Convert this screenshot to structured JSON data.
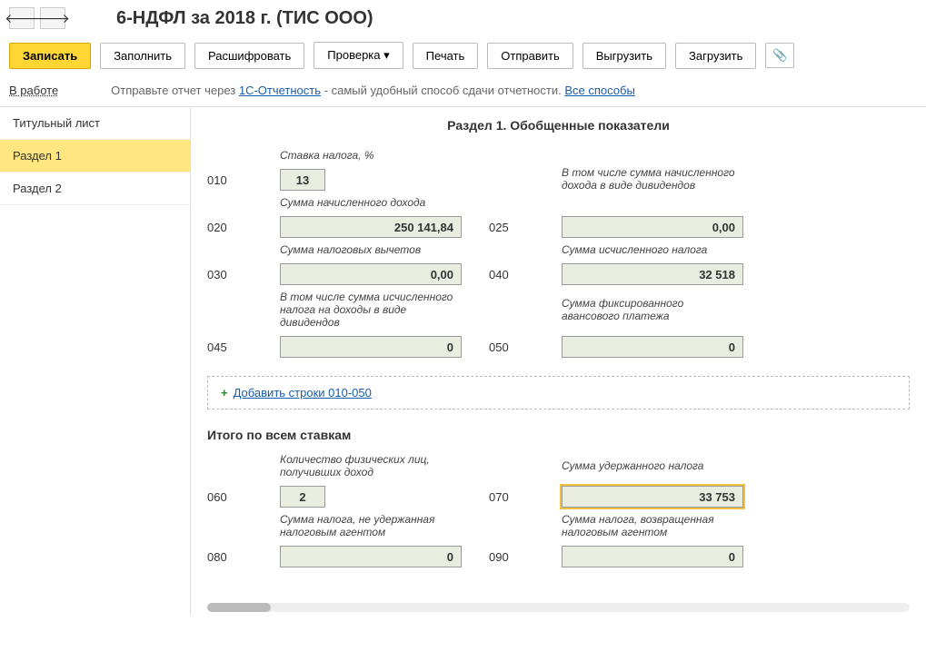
{
  "header": {
    "title": "6-НДФЛ за 2018 г. (ТИС ООО)"
  },
  "toolbar": {
    "save": "Записать",
    "fill": "Заполнить",
    "decrypt": "Расшифровать",
    "check": "Проверка",
    "print": "Печать",
    "send": "Отправить",
    "export": "Выгрузить",
    "import": "Загрузить"
  },
  "info": {
    "status": "В работе",
    "text1": "Отправьте отчет через ",
    "link1": "1С-Отчетность",
    "text2": " - самый удобный способ сдачи отчетности. ",
    "link2": "Все способы"
  },
  "sidebar": {
    "items": [
      {
        "label": "Титульный лист"
      },
      {
        "label": "Раздел 1"
      },
      {
        "label": "Раздел 2"
      }
    ]
  },
  "section1": {
    "title": "Раздел 1. Обобщенные показатели",
    "labels": {
      "rate": "Ставка налога, %",
      "income": "Сумма начисленного дохода",
      "income_div": "В том числе сумма начисленного дохода в виде дивидендов",
      "deductions": "Сумма налоговых вычетов",
      "calc_tax": "Сумма исчисленного налога",
      "calc_tax_div": "В том числе сумма исчисленного налога на доходы в виде дивидендов",
      "fixed_advance": "Сумма фиксированного авансового платежа"
    },
    "codes": {
      "010": "010",
      "020": "020",
      "025": "025",
      "030": "030",
      "040": "040",
      "045": "045",
      "050": "050"
    },
    "values": {
      "010": "13",
      "020": "250 141,84",
      "025": "0,00",
      "030": "0,00",
      "040": "32 518",
      "045": "0",
      "050": "0"
    },
    "add_link": "Добавить строки 010-050",
    "totals_title": "Итого по всем ставкам",
    "totals_labels": {
      "persons": "Количество физических лиц, получивших доход",
      "withheld": "Сумма удержанного налога",
      "not_withheld": "Сумма налога, не удержанная налоговым агентом",
      "returned": "Сумма налога, возвращенная налоговым агентом"
    },
    "totals_codes": {
      "060": "060",
      "070": "070",
      "080": "080",
      "090": "090"
    },
    "totals_values": {
      "060": "2",
      "070": "33 753",
      "080": "0",
      "090": "0"
    }
  }
}
